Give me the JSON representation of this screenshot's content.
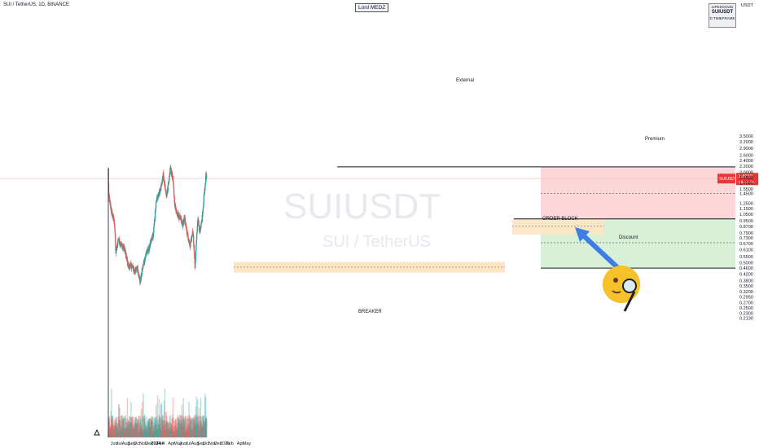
{
  "header": {
    "symbol_line": "SUI / TetherUS, 1D, BINANCE",
    "author_badge": "Lord MEDZ",
    "info_box": [
      "LIPESGOOD",
      "SUIUSDT",
      "D TIMEFRAME"
    ],
    "currency": "USDT"
  },
  "watermark": {
    "symbol": "SUIUSDT",
    "name": "SUI / TetherUS"
  },
  "price_tag": {
    "label": "SUIUSDT",
    "price": "1.8210",
    "timer": "16:12:39",
    "color": "#e53935"
  },
  "colors": {
    "up": "#26a69a",
    "down": "#ef5350",
    "premium": "#fcd7da",
    "discount": "#d7f0d6",
    "zone": "#fde4c2",
    "arrow": "#3d7de6"
  },
  "chart_data": {
    "type": "candlestick",
    "y_scale": "log",
    "y_ticks": [
      "3.5000",
      "3.2000",
      "2.9000",
      "2.6000",
      "2.4000",
      "2.2000",
      "2.0000",
      "1.8500",
      "1.7000",
      "1.5500",
      "1.4500",
      "1.2500",
      "1.1500",
      "1.0500",
      "0.9500",
      "0.8700",
      "0.7900",
      "0.7300",
      "0.6700",
      "0.6100",
      "0.5500",
      "0.5000",
      "0.4600",
      "0.4200",
      "0.3800",
      "0.3500",
      "0.3200",
      "0.2950",
      "0.2700",
      "0.2500",
      "0.2300",
      "0.2130"
    ],
    "x_ticks": [
      "Jun",
      "Jul",
      "Aug",
      "Sep",
      "Oct",
      "Nov",
      "Dec",
      "2024",
      "Feb",
      "4",
      "Apr",
      "May",
      "Jun",
      "Jul",
      "Aug",
      "Sep",
      "Oct",
      "Nov",
      "Dec",
      "2025",
      "Feb",
      "Apr",
      "May"
    ],
    "annotations": [
      "External",
      "Premium",
      "Discount",
      "ORDER BLOCK",
      "BREAKER"
    ],
    "levels": {
      "external_high": 2.18,
      "equilibrium": 0.98,
      "discount_low": 0.46,
      "premium_mid": 1.45,
      "discount_mid": 0.68
    },
    "zones": {
      "breaker": {
        "low": 0.43,
        "high": 0.505,
        "label": "BREAKER"
      },
      "order_block": {
        "low": 0.77,
        "high": 0.98,
        "label": "ORDER BLOCK"
      }
    },
    "anchors": [
      {
        "date": "2023-05-03",
        "price": 2.1
      },
      {
        "date": "2023-05-05",
        "price": 1.4
      },
      {
        "date": "2023-05-20",
        "price": 1.1
      },
      {
        "date": "2023-06-05",
        "price": 0.92
      },
      {
        "date": "2023-06-12",
        "price": 0.58
      },
      {
        "date": "2023-06-25",
        "price": 0.72
      },
      {
        "date": "2023-07-10",
        "price": 0.66
      },
      {
        "date": "2023-07-28",
        "price": 0.62
      },
      {
        "date": "2023-08-18",
        "price": 0.47
      },
      {
        "date": "2023-09-01",
        "price": 0.48
      },
      {
        "date": "2023-09-20",
        "price": 0.44
      },
      {
        "date": "2023-10-05",
        "price": 0.46
      },
      {
        "date": "2023-10-19",
        "price": 0.37
      },
      {
        "date": "2023-11-01",
        "price": 0.46
      },
      {
        "date": "2023-11-20",
        "price": 0.58
      },
      {
        "date": "2023-12-05",
        "price": 0.62
      },
      {
        "date": "2023-12-28",
        "price": 0.78
      },
      {
        "date": "2024-01-12",
        "price": 1.25
      },
      {
        "date": "2024-01-20",
        "price": 1.4
      },
      {
        "date": "2024-02-05",
        "price": 1.55
      },
      {
        "date": "2024-02-18",
        "price": 1.92
      },
      {
        "date": "2024-03-05",
        "price": 1.4
      },
      {
        "date": "2024-03-20",
        "price": 1.7
      },
      {
        "date": "2024-03-27",
        "price": 2.16
      },
      {
        "date": "2024-04-10",
        "price": 1.8
      },
      {
        "date": "2024-04-20",
        "price": 1.2
      },
      {
        "date": "2024-05-05",
        "price": 1.05
      },
      {
        "date": "2024-05-20",
        "price": 1.0
      },
      {
        "date": "2024-06-01",
        "price": 0.9
      },
      {
        "date": "2024-06-10",
        "price": 1.0
      },
      {
        "date": "2024-06-25",
        "price": 0.78
      },
      {
        "date": "2024-07-10",
        "price": 0.64
      },
      {
        "date": "2024-07-25",
        "price": 0.82
      },
      {
        "date": "2024-08-05",
        "price": 0.47
      },
      {
        "date": "2024-08-20",
        "price": 1.0
      },
      {
        "date": "2024-08-28",
        "price": 0.8
      },
      {
        "date": "2024-09-10",
        "price": 0.95
      },
      {
        "date": "2024-09-20",
        "price": 1.3
      },
      {
        "date": "2024-09-30",
        "price": 1.75
      },
      {
        "date": "2024-10-03",
        "price": 2.0
      },
      {
        "date": "2024-10-06",
        "price": 1.82
      }
    ]
  }
}
